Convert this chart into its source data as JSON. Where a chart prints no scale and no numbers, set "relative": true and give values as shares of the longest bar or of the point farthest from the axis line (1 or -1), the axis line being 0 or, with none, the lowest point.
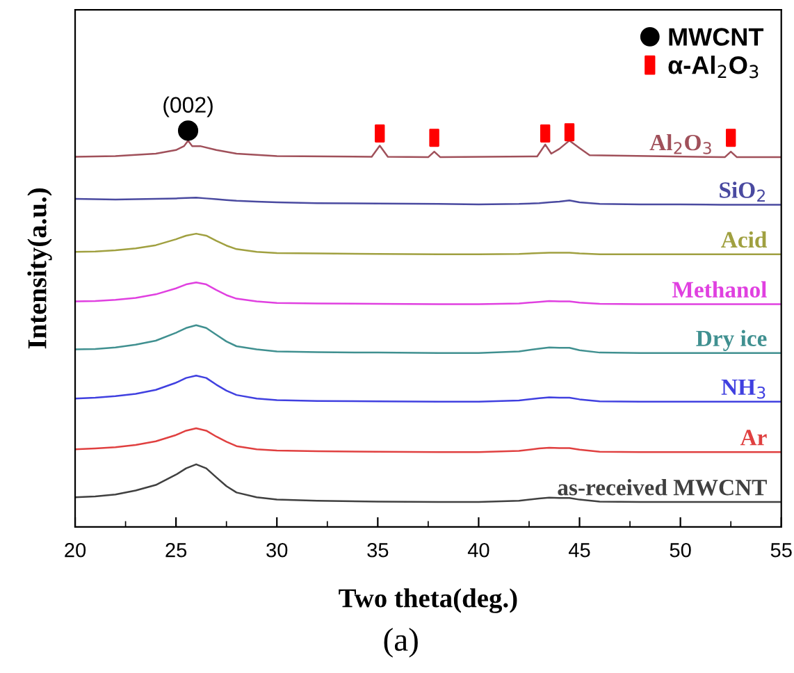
{
  "chart_data": {
    "type": "line",
    "relative": true,
    "xlabel": "Two theta(deg.)",
    "ylabel": "Intensity(a.u.)",
    "xlim": [
      20,
      55
    ],
    "xticks": [
      20,
      25,
      30,
      35,
      40,
      45,
      50,
      55
    ],
    "grid": false,
    "legend": "top right",
    "marker": "none",
    "line_style": "solid",
    "x": [
      20,
      21,
      22,
      23,
      24,
      25,
      25.5,
      26,
      26.5,
      27,
      27.5,
      28,
      29,
      30,
      32,
      35,
      38,
      40,
      42,
      43,
      43.5,
      44,
      44.5,
      45,
      46,
      48,
      50,
      52,
      55
    ],
    "series": [
      {
        "name": "Al$_{2}$O$_{3}$",
        "color": "#a0505a",
        "x": [
          20,
          22,
          24,
          25,
          25.4,
          25.6,
          25.8,
          26.2,
          27,
          28,
          30,
          34.7,
          35.1,
          35.5,
          37.5,
          37.8,
          38.1,
          42.9,
          43.3,
          43.6,
          44,
          44.5,
          45,
          45.5,
          52.2,
          52.5,
          52.8,
          55
        ],
        "values": [
          0.934,
          0.936,
          0.942,
          0.951,
          0.961,
          0.975,
          0.961,
          0.961,
          0.951,
          0.942,
          0.936,
          0.934,
          0.962,
          0.934,
          0.933,
          0.947,
          0.933,
          0.935,
          0.965,
          0.942,
          0.954,
          0.975,
          0.956,
          0.938,
          0.933,
          0.947,
          0.933,
          0.933
        ]
      },
      {
        "name": "SiO$_{2}$",
        "color": "#4a4aa0",
        "values": [
          0.828,
          0.827,
          0.826,
          0.827,
          0.828,
          0.829,
          0.83,
          0.831,
          0.829,
          0.827,
          0.825,
          0.823,
          0.821,
          0.819,
          0.817,
          0.816,
          0.815,
          0.814,
          0.815,
          0.817,
          0.819,
          0.821,
          0.824,
          0.819,
          0.815,
          0.814,
          0.814,
          0.813,
          0.813
        ]
      },
      {
        "name": "Acid",
        "color": "#a0a040",
        "values": [
          0.694,
          0.695,
          0.698,
          0.703,
          0.711,
          0.726,
          0.735,
          0.74,
          0.735,
          0.722,
          0.71,
          0.701,
          0.694,
          0.691,
          0.69,
          0.689,
          0.688,
          0.688,
          0.689,
          0.691,
          0.692,
          0.692,
          0.692,
          0.69,
          0.688,
          0.688,
          0.688,
          0.688,
          0.688
        ]
      },
      {
        "name": "Methanol",
        "color": "#e040e0",
        "values": [
          0.569,
          0.57,
          0.573,
          0.578,
          0.587,
          0.602,
          0.612,
          0.617,
          0.612,
          0.598,
          0.585,
          0.576,
          0.569,
          0.565,
          0.564,
          0.563,
          0.562,
          0.562,
          0.564,
          0.568,
          0.57,
          0.569,
          0.569,
          0.566,
          0.563,
          0.562,
          0.562,
          0.562,
          0.562
        ]
      },
      {
        "name": "Dry ice",
        "color": "#409090",
        "values": [
          0.448,
          0.449,
          0.453,
          0.46,
          0.47,
          0.49,
          0.502,
          0.509,
          0.502,
          0.485,
          0.468,
          0.456,
          0.448,
          0.443,
          0.441,
          0.44,
          0.439,
          0.439,
          0.443,
          0.45,
          0.453,
          0.452,
          0.452,
          0.446,
          0.44,
          0.439,
          0.439,
          0.439,
          0.439
        ]
      },
      {
        "name": "NH$_{3}$",
        "color": "#4040e0",
        "values": [
          0.324,
          0.326,
          0.33,
          0.336,
          0.346,
          0.364,
          0.376,
          0.382,
          0.376,
          0.359,
          0.344,
          0.333,
          0.324,
          0.32,
          0.318,
          0.317,
          0.316,
          0.316,
          0.319,
          0.325,
          0.327,
          0.326,
          0.326,
          0.322,
          0.317,
          0.316,
          0.316,
          0.316,
          0.316
        ]
      },
      {
        "name": "Ar",
        "color": "#e04040",
        "values": [
          0.196,
          0.198,
          0.201,
          0.207,
          0.216,
          0.232,
          0.243,
          0.249,
          0.243,
          0.228,
          0.215,
          0.204,
          0.196,
          0.193,
          0.191,
          0.19,
          0.189,
          0.189,
          0.192,
          0.198,
          0.2,
          0.199,
          0.199,
          0.195,
          0.19,
          0.189,
          0.189,
          0.189,
          0.189
        ]
      },
      {
        "name": "as-received MWCNT",
        "color": "#404040",
        "values": [
          0.075,
          0.077,
          0.082,
          0.092,
          0.106,
          0.132,
          0.148,
          0.158,
          0.148,
          0.125,
          0.103,
          0.087,
          0.075,
          0.069,
          0.066,
          0.064,
          0.063,
          0.063,
          0.066,
          0.072,
          0.074,
          0.073,
          0.073,
          0.069,
          0.064,
          0.063,
          0.063,
          0.063,
          0.063
        ]
      },
      {
        "name": "MWCNT",
        "type": "scatter",
        "marker": "circle",
        "color": "#000000",
        "x": [
          25.6
        ],
        "values": [
          1.0
        ]
      },
      {
        "name": "α-Al$_{2}$O$_{3}$",
        "type": "scatter",
        "marker": "square",
        "color": "#ff0000",
        "x": [
          35.1,
          37.8,
          43.3,
          44.5,
          52.5
        ],
        "values": [
          0.993,
          0.982,
          0.993,
          0.996,
          0.982
        ]
      }
    ],
    "annotations": [
      {
        "text": "(002)",
        "x": 25.6,
        "y": 1.0
      },
      "(a)"
    ]
  }
}
